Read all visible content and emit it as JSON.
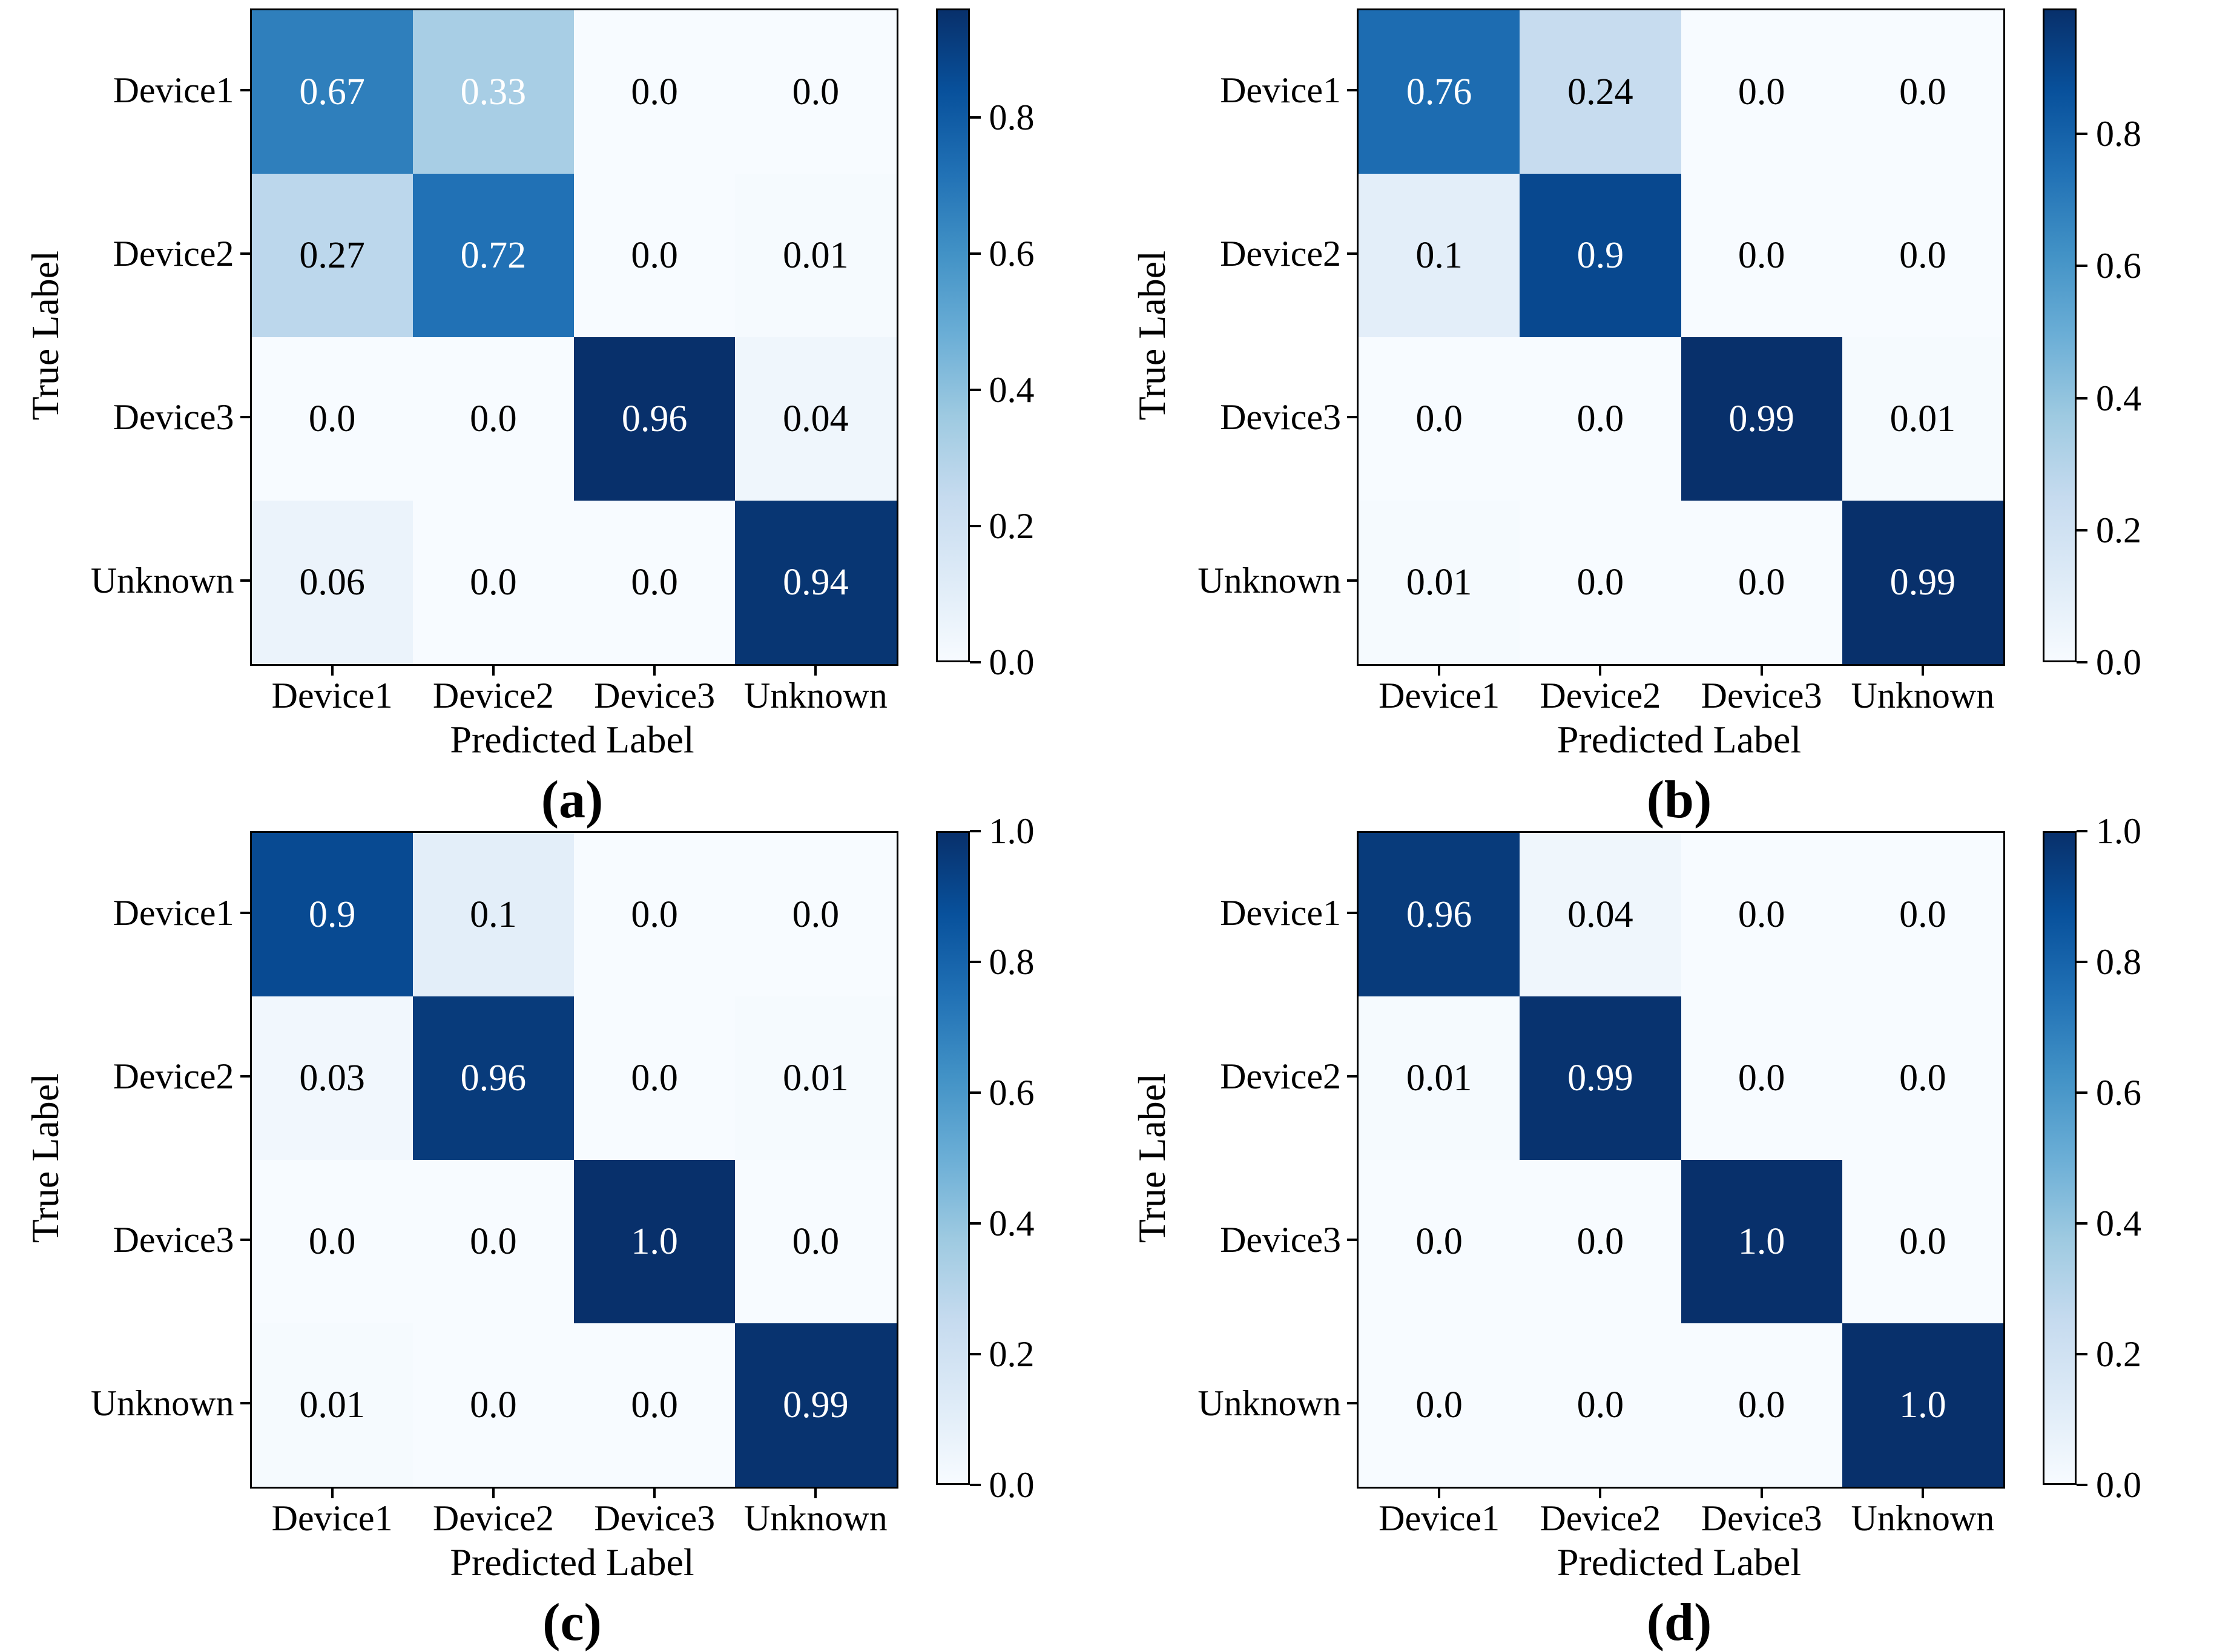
{
  "style": {
    "background": "#ffffff",
    "colormap": "Blues",
    "cell_text_light": "#ffffff",
    "cell_text_dark": "#000000",
    "light_text_threshold": 0.3,
    "colormap_min_color": "#f7fbff",
    "colormap_max_color": "#08306b"
  },
  "chart_data": [
    {
      "type": "heatmap",
      "caption": "(a)",
      "xlabel": "Predicted Label",
      "ylabel": "True Label",
      "x_categories": [
        "Device1",
        "Device2",
        "Device3",
        "Unknown"
      ],
      "y_categories": [
        "Device1",
        "Device2",
        "Device3",
        "Unknown"
      ],
      "values": [
        [
          0.67,
          0.33,
          0.0,
          0.0
        ],
        [
          0.27,
          0.72,
          0.0,
          0.01
        ],
        [
          0.0,
          0.0,
          0.96,
          0.04
        ],
        [
          0.06,
          0.0,
          0.0,
          0.94
        ]
      ],
      "cell_labels": [
        [
          "0.67",
          "0.33",
          "0.0",
          "0.0"
        ],
        [
          "0.27",
          "0.72",
          "0.0",
          "0.01"
        ],
        [
          "0.0",
          "0.0",
          "0.96",
          "0.04"
        ],
        [
          "0.06",
          "0.0",
          "0.0",
          "0.94"
        ]
      ],
      "vmin": 0.0,
      "vmax": 0.96,
      "colorbar_ticks": [
        0.0,
        0.2,
        0.4,
        0.6,
        0.8
      ],
      "colorbar_tick_labels": [
        "0.0",
        "0.2",
        "0.4",
        "0.6",
        "0.8"
      ],
      "legend_position": "right-colorbar",
      "grid": false
    },
    {
      "type": "heatmap",
      "caption": "(b)",
      "xlabel": "Predicted Label",
      "ylabel": "True Label",
      "x_categories": [
        "Device1",
        "Device2",
        "Device3",
        "Unknown"
      ],
      "y_categories": [
        "Device1",
        "Device2",
        "Device3",
        "Unknown"
      ],
      "values": [
        [
          0.76,
          0.24,
          0.0,
          0.0
        ],
        [
          0.1,
          0.9,
          0.0,
          0.0
        ],
        [
          0.0,
          0.0,
          0.99,
          0.01
        ],
        [
          0.01,
          0.0,
          0.0,
          0.99
        ]
      ],
      "cell_labels": [
        [
          "0.76",
          "0.24",
          "0.0",
          "0.0"
        ],
        [
          "0.1",
          "0.9",
          "0.0",
          "0.0"
        ],
        [
          "0.0",
          "0.0",
          "0.99",
          "0.01"
        ],
        [
          "0.01",
          "0.0",
          "0.0",
          "0.99"
        ]
      ],
      "vmin": 0.0,
      "vmax": 0.99,
      "colorbar_ticks": [
        0.0,
        0.2,
        0.4,
        0.6,
        0.8
      ],
      "colorbar_tick_labels": [
        "0.0",
        "0.2",
        "0.4",
        "0.6",
        "0.8"
      ],
      "legend_position": "right-colorbar",
      "grid": false
    },
    {
      "type": "heatmap",
      "caption": "(c)",
      "xlabel": "Predicted Label",
      "ylabel": "True Label",
      "x_categories": [
        "Device1",
        "Device2",
        "Device3",
        "Unknown"
      ],
      "y_categories": [
        "Device1",
        "Device2",
        "Device3",
        "Unknown"
      ],
      "values": [
        [
          0.9,
          0.1,
          0.0,
          0.0
        ],
        [
          0.03,
          0.96,
          0.0,
          0.01
        ],
        [
          0.0,
          0.0,
          1.0,
          0.0
        ],
        [
          0.01,
          0.0,
          0.0,
          0.99
        ]
      ],
      "cell_labels": [
        [
          "0.9",
          "0.1",
          "0.0",
          "0.0"
        ],
        [
          "0.03",
          "0.96",
          "0.0",
          "0.01"
        ],
        [
          "0.0",
          "0.0",
          "1.0",
          "0.0"
        ],
        [
          "0.01",
          "0.0",
          "0.0",
          "0.99"
        ]
      ],
      "vmin": 0.0,
      "vmax": 1.0,
      "colorbar_ticks": [
        0.0,
        0.2,
        0.4,
        0.6,
        0.8,
        1.0
      ],
      "colorbar_tick_labels": [
        "0.0",
        "0.2",
        "0.4",
        "0.6",
        "0.8",
        "1.0"
      ],
      "legend_position": "right-colorbar",
      "grid": false
    },
    {
      "type": "heatmap",
      "caption": "(d)",
      "xlabel": "Predicted Label",
      "ylabel": "True Label",
      "x_categories": [
        "Device1",
        "Device2",
        "Device3",
        "Unknown"
      ],
      "y_categories": [
        "Device1",
        "Device2",
        "Device3",
        "Unknown"
      ],
      "values": [
        [
          0.96,
          0.04,
          0.0,
          0.0
        ],
        [
          0.01,
          0.99,
          0.0,
          0.0
        ],
        [
          0.0,
          0.0,
          1.0,
          0.0
        ],
        [
          0.0,
          0.0,
          0.0,
          1.0
        ]
      ],
      "cell_labels": [
        [
          "0.96",
          "0.04",
          "0.0",
          "0.0"
        ],
        [
          "0.01",
          "0.99",
          "0.0",
          "0.0"
        ],
        [
          "0.0",
          "0.0",
          "1.0",
          "0.0"
        ],
        [
          "0.0",
          "0.0",
          "0.0",
          "1.0"
        ]
      ],
      "vmin": 0.0,
      "vmax": 1.0,
      "colorbar_ticks": [
        0.0,
        0.2,
        0.4,
        0.6,
        0.8,
        1.0
      ],
      "colorbar_tick_labels": [
        "0.0",
        "0.2",
        "0.4",
        "0.6",
        "0.8",
        "1.0"
      ],
      "legend_position": "right-colorbar",
      "grid": false
    }
  ]
}
